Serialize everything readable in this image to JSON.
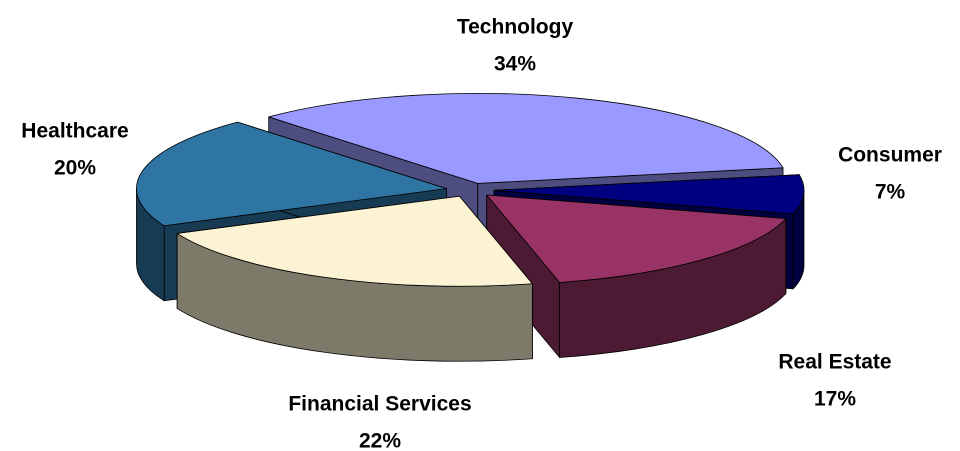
{
  "chart_data": {
    "type": "pie",
    "categories": [
      "Technology",
      "Consumer",
      "Real Estate",
      "Financial Services",
      "Healthcare"
    ],
    "values": [
      34,
      7,
      17,
      22,
      20
    ],
    "value_labels": [
      "34%",
      "7%",
      "17%",
      "22%",
      "20%"
    ],
    "colors": [
      "#9999ff",
      "#000080",
      "#993366",
      "#fcf3d4",
      "#2e75a3"
    ]
  }
}
